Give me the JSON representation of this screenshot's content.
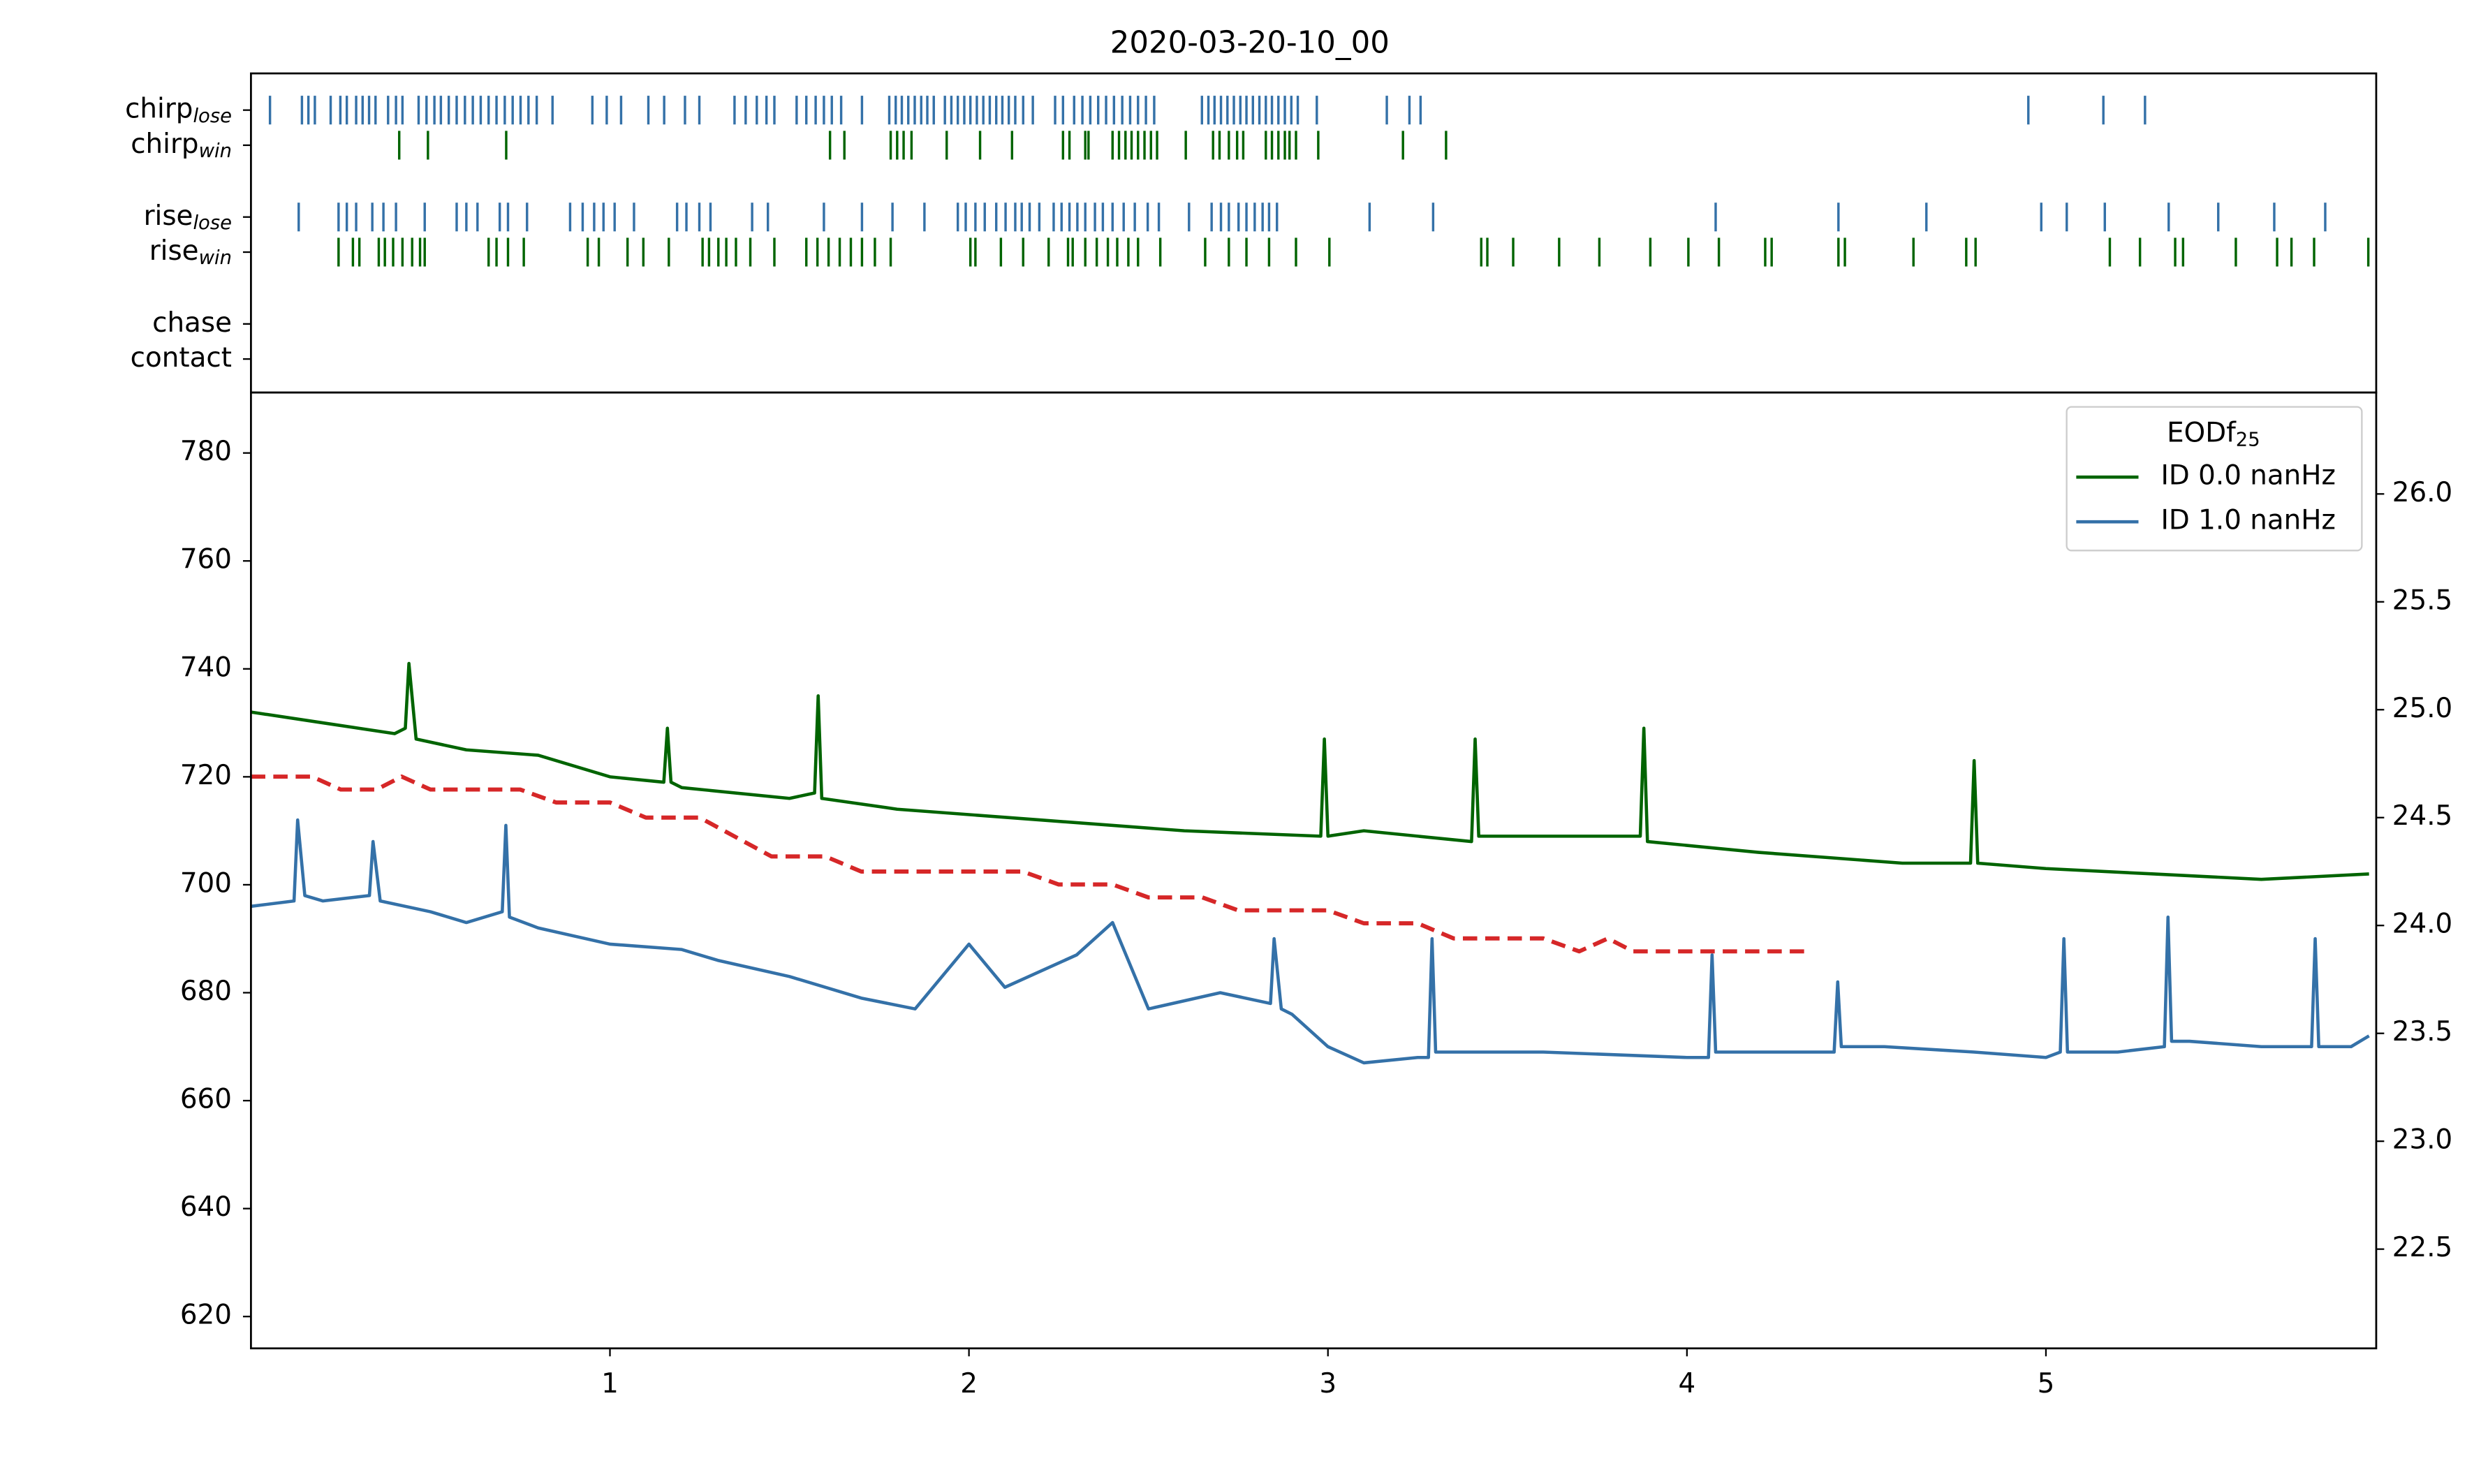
{
  "chart_data": [
    {
      "type": "event",
      "title": "2020-03-20-10_00",
      "xlim": [
        0,
        5.92
      ],
      "rows": [
        {
          "label": "chirp",
          "label_sub": "lose",
          "color": "#3471a8",
          "times": [
            0.053,
            0.142,
            0.16,
            0.178,
            0.222,
            0.249,
            0.267,
            0.293,
            0.311,
            0.329,
            0.347,
            0.382,
            0.404,
            0.422,
            0.467,
            0.489,
            0.511,
            0.529,
            0.551,
            0.573,
            0.596,
            0.618,
            0.64,
            0.662,
            0.684,
            0.707,
            0.729,
            0.751,
            0.773,
            0.796,
            0.84,
            0.951,
            0.991,
            1.031,
            1.107,
            1.151,
            1.209,
            1.249,
            1.347,
            1.378,
            1.409,
            1.436,
            1.458,
            1.52,
            1.547,
            1.573,
            1.596,
            1.618,
            1.644,
            1.702,
            1.778,
            1.796,
            1.813,
            1.831,
            1.849,
            1.867,
            1.884,
            1.902,
            1.933,
            1.951,
            1.969,
            1.987,
            2.004,
            2.022,
            2.04,
            2.058,
            2.076,
            2.093,
            2.111,
            2.129,
            2.151,
            2.178,
            2.24,
            2.262,
            2.293,
            2.316,
            2.338,
            2.36,
            2.382,
            2.404,
            2.427,
            2.449,
            2.471,
            2.493,
            2.516,
            2.649,
            2.667,
            2.684,
            2.702,
            2.72,
            2.738,
            2.756,
            2.773,
            2.791,
            2.809,
            2.827,
            2.844,
            2.862,
            2.88,
            2.898,
            2.916,
            2.969,
            3.164,
            3.227,
            3.258,
            4.951,
            5.16,
            5.276
          ]
        },
        {
          "label": "chirp",
          "label_sub": "win",
          "color": "#006400",
          "times": [
            0.413,
            0.493,
            0.711,
            1.613,
            1.653,
            1.782,
            1.8,
            1.818,
            1.84,
            1.938,
            2.031,
            2.12,
            2.262,
            2.28,
            2.324,
            2.333,
            2.4,
            2.418,
            2.436,
            2.453,
            2.471,
            2.489,
            2.507,
            2.524,
            2.604,
            2.68,
            2.698,
            2.724,
            2.747,
            2.764,
            2.827,
            2.844,
            2.862,
            2.88,
            2.893,
            2.911,
            2.973,
            3.209,
            3.329
          ]
        },
        {
          "label": "rise",
          "label_sub": "lose",
          "color": "#3471a8",
          "times": [
            0.133,
            0.244,
            0.267,
            0.293,
            0.338,
            0.369,
            0.404,
            0.484,
            0.573,
            0.6,
            0.631,
            0.693,
            0.716,
            0.769,
            0.889,
            0.924,
            0.956,
            0.982,
            1.013,
            1.067,
            1.187,
            1.213,
            1.249,
            1.28,
            1.396,
            1.44,
            1.596,
            1.702,
            1.787,
            1.876,
            1.969,
            1.991,
            2.018,
            2.044,
            2.076,
            2.102,
            2.129,
            2.147,
            2.169,
            2.196,
            2.236,
            2.258,
            2.28,
            2.302,
            2.324,
            2.351,
            2.373,
            2.4,
            2.431,
            2.462,
            2.498,
            2.529,
            2.613,
            2.676,
            2.702,
            2.724,
            2.751,
            2.773,
            2.796,
            2.818,
            2.836,
            2.858,
            3.116,
            3.293,
            4.08,
            4.422,
            4.667,
            4.987,
            5.058,
            5.164,
            5.342,
            5.48,
            5.636,
            5.778
          ]
        },
        {
          "label": "rise",
          "label_sub": "win",
          "color": "#006400",
          "times": [
            0.244,
            0.284,
            0.302,
            0.356,
            0.373,
            0.396,
            0.422,
            0.449,
            0.471,
            0.484,
            0.662,
            0.684,
            0.716,
            0.76,
            0.938,
            0.969,
            1.049,
            1.093,
            1.164,
            1.258,
            1.276,
            1.302,
            1.324,
            1.351,
            1.391,
            1.458,
            1.547,
            1.578,
            1.609,
            1.64,
            1.671,
            1.702,
            1.738,
            1.782,
            2.004,
            2.018,
            2.089,
            2.151,
            2.222,
            2.276,
            2.289,
            2.324,
            2.356,
            2.387,
            2.413,
            2.444,
            2.471,
            2.533,
            2.658,
            2.724,
            2.773,
            2.836,
            2.911,
            3.004,
            3.427,
            3.444,
            3.516,
            3.644,
            3.756,
            3.898,
            4.004,
            4.089,
            4.218,
            4.236,
            4.422,
            4.44,
            4.631,
            4.778,
            4.804,
            5.178,
            5.262,
            5.36,
            5.382,
            5.529,
            5.644,
            5.684,
            5.747,
            5.898
          ]
        },
        {
          "label": "chase",
          "color": "#3471a8",
          "times": []
        },
        {
          "label": "contact",
          "color": "#3471a8",
          "times": []
        }
      ]
    },
    {
      "type": "line",
      "xlim": [
        0,
        5.92
      ],
      "xticks": [
        1,
        2,
        3,
        4,
        5
      ],
      "ylim": [
        614.1,
        791.2
      ],
      "yticks": [
        620,
        640,
        660,
        680,
        700,
        720,
        740,
        760,
        780
      ],
      "y2lim": [
        22.04,
        26.47
      ],
      "y2ticks": [
        22.5,
        {
          "value": 23,
          "label": "23.0"
        },
        23.5,
        {
          "value": 24,
          "label": "24.0"
        },
        24.5,
        {
          "value": 25,
          "label": "25.0"
        },
        25.5,
        {
          "value": 26,
          "label": "26.0"
        }
      ],
      "legend_title": "EODf",
      "legend_title_sub": "25",
      "series": [
        {
          "name": "ID 0.0 nanHz",
          "color": "#006400",
          "x": [
            0,
            0.2,
            0.4,
            0.43,
            0.44,
            0.46,
            0.6,
            0.8,
            1.0,
            1.15,
            1.16,
            1.17,
            1.2,
            1.5,
            1.57,
            1.58,
            1.59,
            1.8,
            2.2,
            2.6,
            2.98,
            2.99,
            3.0,
            3.1,
            3.4,
            3.41,
            3.42,
            3.6,
            3.87,
            3.88,
            3.89,
            4.2,
            4.4,
            4.6,
            4.79,
            4.8,
            4.81,
            5.0,
            5.3,
            5.6,
            5.9
          ],
          "values": [
            732,
            730,
            728,
            729,
            741,
            727,
            725,
            724,
            720,
            719,
            729,
            719,
            718,
            716,
            717,
            735,
            716,
            714,
            712,
            710,
            709,
            727,
            709,
            710,
            708,
            727,
            709,
            709,
            709,
            729,
            708,
            706,
            705,
            704,
            704,
            723,
            704,
            703,
            702,
            701,
            702
          ]
        },
        {
          "name": "ID 1.0 nanHz",
          "color": "#3471a8",
          "x": [
            0,
            0.12,
            0.13,
            0.15,
            0.2,
            0.33,
            0.34,
            0.36,
            0.5,
            0.6,
            0.7,
            0.71,
            0.72,
            0.8,
            1.0,
            1.2,
            1.3,
            1.5,
            1.7,
            1.85,
            2.0,
            2.1,
            2.3,
            2.4,
            2.5,
            2.7,
            2.84,
            2.85,
            2.87,
            2.9,
            3.0,
            3.1,
            3.25,
            3.28,
            3.29,
            3.3,
            3.6,
            4.0,
            4.06,
            4.07,
            4.08,
            4.4,
            4.41,
            4.42,
            4.43,
            4.55,
            4.8,
            5.0,
            5.04,
            5.05,
            5.06,
            5.2,
            5.33,
            5.34,
            5.35,
            5.4,
            5.6,
            5.74,
            5.75,
            5.76,
            5.85,
            5.9
          ],
          "values": [
            696,
            697,
            712,
            698,
            697,
            698,
            708,
            697,
            695,
            693,
            695,
            711,
            694,
            692,
            689,
            688,
            686,
            683,
            679,
            677,
            689,
            681,
            687,
            693,
            677,
            680,
            678,
            690,
            677,
            676,
            670,
            667,
            668,
            668,
            690,
            669,
            669,
            668,
            668,
            687,
            669,
            669,
            669,
            682,
            670,
            670,
            669,
            668,
            669,
            690,
            669,
            669,
            670,
            694,
            671,
            671,
            670,
            670,
            690,
            670,
            670,
            672
          ]
        },
        {
          "color": "#d62728",
          "axis": "y2",
          "dashed": true,
          "x": [
            0,
            0.17,
            0.25,
            0.35,
            0.42,
            0.5,
            0.75,
            0.85,
            1.0,
            1.1,
            1.25,
            1.45,
            1.6,
            1.7,
            2.15,
            2.25,
            2.4,
            2.5,
            2.65,
            2.75,
            3.0,
            3.1,
            3.25,
            3.35,
            3.6,
            3.7,
            3.78,
            3.85,
            4.33
          ],
          "values": [
            24.69,
            24.69,
            24.63,
            24.63,
            24.69,
            24.63,
            24.63,
            24.57,
            24.57,
            24.5,
            24.5,
            24.32,
            24.32,
            24.25,
            24.25,
            24.19,
            24.19,
            24.13,
            24.13,
            24.07,
            24.07,
            24.01,
            24.01,
            23.94,
            23.94,
            23.88,
            23.94,
            23.88,
            23.88
          ]
        }
      ]
    }
  ]
}
